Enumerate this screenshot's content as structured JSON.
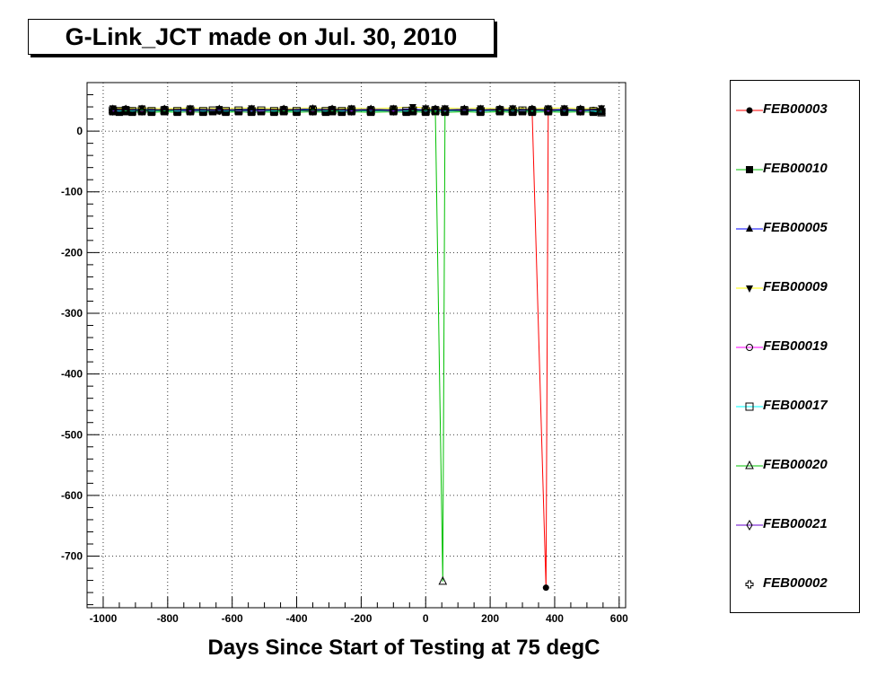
{
  "title": "G-Link_JCT made on Jul. 30, 2010",
  "chart_data": {
    "type": "line",
    "title": "G-Link_JCT made on Jul. 30, 2010",
    "xlabel": "Days Since Start of Testing at 75 degC",
    "ylabel": "",
    "xlim": [
      -1050,
      620
    ],
    "ylim": [
      -785,
      80
    ],
    "xticks": [
      -1000,
      -800,
      -600,
      -400,
      -200,
      0,
      200,
      400,
      600
    ],
    "yticks": [
      0,
      -100,
      -200,
      -300,
      -400,
      -500,
      -600,
      -700
    ],
    "grid": true,
    "legend_position": "right",
    "series": [
      {
        "name": "FEB00003",
        "color": "#ff0000",
        "marker": "circle-filled",
        "x": [
          -970,
          -950,
          -930,
          -910,
          -880,
          -850,
          -810,
          -730,
          -640,
          -540,
          -440,
          -350,
          -290,
          -230,
          -170,
          -100,
          -40,
          0,
          30,
          60,
          120,
          170,
          230,
          270,
          300,
          330,
          373,
          380,
          430,
          480,
          520,
          545
        ],
        "y": [
          35,
          34,
          35,
          34,
          35,
          34,
          35,
          34,
          35,
          34,
          35,
          35,
          34,
          35,
          34,
          35,
          34,
          35,
          35,
          34,
          35,
          34,
          35,
          35,
          34,
          35,
          -752,
          36,
          35,
          34,
          35,
          34
        ]
      },
      {
        "name": "FEB00010",
        "color": "#00c000",
        "marker": "square-filled",
        "x": [
          -970,
          -950,
          -930,
          -910,
          -880,
          -850,
          -810,
          -770,
          -730,
          -690,
          -660,
          -620,
          -580,
          -540,
          -510,
          -470,
          -440,
          -400,
          -350,
          -310,
          -290,
          -260,
          -230,
          -170,
          -100,
          -60,
          -40,
          0,
          30,
          60,
          120,
          170,
          230,
          270,
          300,
          330,
          380,
          430,
          480,
          520,
          545
        ],
        "y": [
          32,
          31,
          32,
          31,
          32,
          31,
          32,
          31,
          32,
          31,
          32,
          31,
          32,
          31,
          32,
          31,
          32,
          31,
          32,
          31,
          32,
          31,
          32,
          31,
          32,
          31,
          32,
          31,
          32,
          31,
          32,
          31,
          32,
          31,
          32,
          31,
          32,
          31,
          32,
          31,
          32
        ]
      },
      {
        "name": "FEB00005",
        "color": "#0000ff",
        "marker": "triangle-up-filled",
        "x": [
          -970,
          -930,
          -880,
          -810,
          -730,
          -640,
          -540,
          -440,
          -350,
          -290,
          -230,
          -170,
          -100,
          -40,
          0,
          30,
          60,
          120,
          170,
          230,
          270,
          330,
          380,
          430,
          480,
          545
        ],
        "y": [
          36,
          35,
          36,
          35,
          36,
          35,
          36,
          35,
          37,
          36,
          35,
          36,
          35,
          36,
          35,
          36,
          35,
          36,
          35,
          36,
          35,
          36,
          35,
          36,
          35,
          36
        ]
      },
      {
        "name": "FEB00009",
        "color": "#ffff00",
        "marker": "triangle-down-filled",
        "x": [
          -970,
          -930,
          -880,
          -810,
          -730,
          -640,
          -540,
          -440,
          -350,
          -290,
          -230,
          -170,
          -100,
          -40,
          0,
          30,
          60,
          120,
          170,
          230,
          270,
          330,
          380,
          430,
          480,
          545
        ],
        "y": [
          38,
          37,
          38,
          37,
          38,
          37,
          38,
          37,
          38,
          37,
          38,
          37,
          38,
          40,
          38,
          37,
          38,
          37,
          38,
          37,
          38,
          37,
          38,
          38,
          37,
          38
        ]
      },
      {
        "name": "FEB00019",
        "color": "#ff00ff",
        "marker": "circle-open",
        "x": [
          -970,
          -930,
          -880,
          -810,
          -730,
          -640,
          -540,
          -440,
          -350,
          -290,
          -230,
          -170,
          -100,
          -40,
          0,
          30,
          60,
          120,
          170,
          230,
          270,
          330,
          380,
          430,
          480,
          545
        ],
        "y": [
          33,
          34,
          33,
          34,
          33,
          34,
          33,
          34,
          33,
          34,
          33,
          34,
          33,
          34,
          33,
          34,
          33,
          34,
          33,
          34,
          33,
          34,
          33,
          34,
          33,
          34
        ]
      },
      {
        "name": "FEB00017",
        "color": "#00ffff",
        "marker": "square-open",
        "x": [
          -970,
          -950,
          -930,
          -910,
          -880,
          -850,
          -810,
          -770,
          -730,
          -690,
          -660,
          -620,
          -580,
          -540,
          -510,
          -470,
          -440,
          -400,
          -350,
          -310,
          -290,
          -260,
          -230,
          -170,
          -100,
          -60,
          -40,
          0,
          30,
          60,
          120,
          170,
          230,
          270,
          300,
          330,
          380,
          430,
          480,
          520,
          545
        ],
        "y": [
          34,
          33,
          34,
          33,
          34,
          33,
          34,
          33,
          34,
          33,
          34,
          33,
          34,
          33,
          34,
          33,
          34,
          33,
          34,
          33,
          34,
          33,
          34,
          33,
          34,
          33,
          34,
          33,
          34,
          33,
          34,
          33,
          34,
          33,
          34,
          33,
          34,
          33,
          34,
          33,
          31
        ]
      },
      {
        "name": "FEB00020",
        "color": "#00c000",
        "marker": "triangle-up-open",
        "x": [
          -970,
          -930,
          -880,
          -810,
          -730,
          -640,
          -540,
          -440,
          -350,
          -290,
          -230,
          -170,
          -100,
          -40,
          0,
          30,
          53,
          60,
          120,
          170,
          230,
          270,
          330,
          380,
          430,
          480,
          545
        ],
        "y": [
          35,
          34,
          35,
          34,
          35,
          34,
          35,
          34,
          35,
          34,
          35,
          34,
          35,
          34,
          35,
          34,
          -742,
          35,
          34,
          35,
          34,
          35,
          34,
          35,
          34,
          35,
          34
        ]
      },
      {
        "name": "FEB00021",
        "color": "#6600cc",
        "marker": "diamond-open",
        "x": [
          -970,
          -930,
          -880,
          -810,
          -730,
          -640,
          -540,
          -440,
          -350,
          -290,
          -230,
          -170,
          -100,
          -40,
          0,
          30,
          60,
          120,
          170,
          230,
          270,
          330,
          380,
          430,
          480,
          545
        ],
        "y": [
          34,
          35,
          34,
          35,
          34,
          35,
          34,
          35,
          34,
          35,
          34,
          35,
          34,
          35,
          34,
          35,
          34,
          35,
          34,
          35,
          34,
          35,
          34,
          35,
          34,
          35
        ]
      },
      {
        "name": "FEB00002",
        "color": "#000000",
        "marker": "cross-open",
        "x": [
          -970,
          -930,
          -880,
          -810,
          -730,
          -640,
          -540,
          -440,
          -350,
          -290,
          -230,
          -170,
          -100,
          -40,
          0,
          30,
          60,
          120,
          170,
          230,
          270,
          330,
          380,
          430,
          480,
          545
        ],
        "y": [
          35,
          35,
          34,
          35,
          35,
          34,
          35,
          35,
          34,
          35,
          35,
          34,
          35,
          35,
          34,
          35,
          35,
          34,
          35,
          35,
          34,
          35,
          35,
          34,
          35,
          35
        ]
      }
    ]
  }
}
